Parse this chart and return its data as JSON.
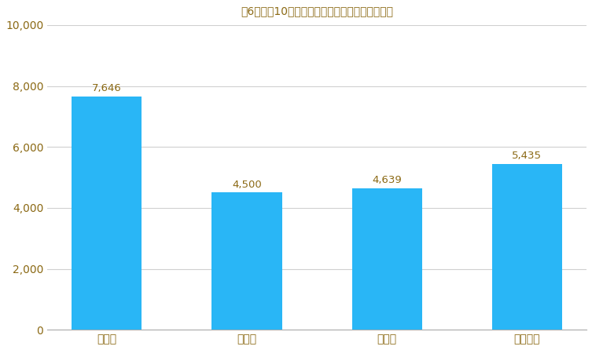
{
  "title": "築6年～築10年のマンションの売却相場（万円）",
  "categories": [
    "東京都",
    "埼玉県",
    "千葉県",
    "神奈川県"
  ],
  "values": [
    7646,
    4500,
    4639,
    5435
  ],
  "bar_color": "#29B6F6",
  "value_labels": [
    "7,646",
    "4,500",
    "4,639",
    "5,435"
  ],
  "ylim": [
    0,
    10000
  ],
  "yticks": [
    0,
    2000,
    4000,
    6000,
    8000,
    10000
  ],
  "ytick_labels": [
    "0",
    "2,000",
    "4,000",
    "6,000",
    "8,000",
    "10,000"
  ],
  "title_color": "#8B6914",
  "label_color": "#8B6914",
  "tick_label_color": "#8B6914",
  "background_color": "#FFFFFF",
  "grid_color": "#D0D0D0",
  "title_fontsize": 12,
  "bar_width": 0.5
}
